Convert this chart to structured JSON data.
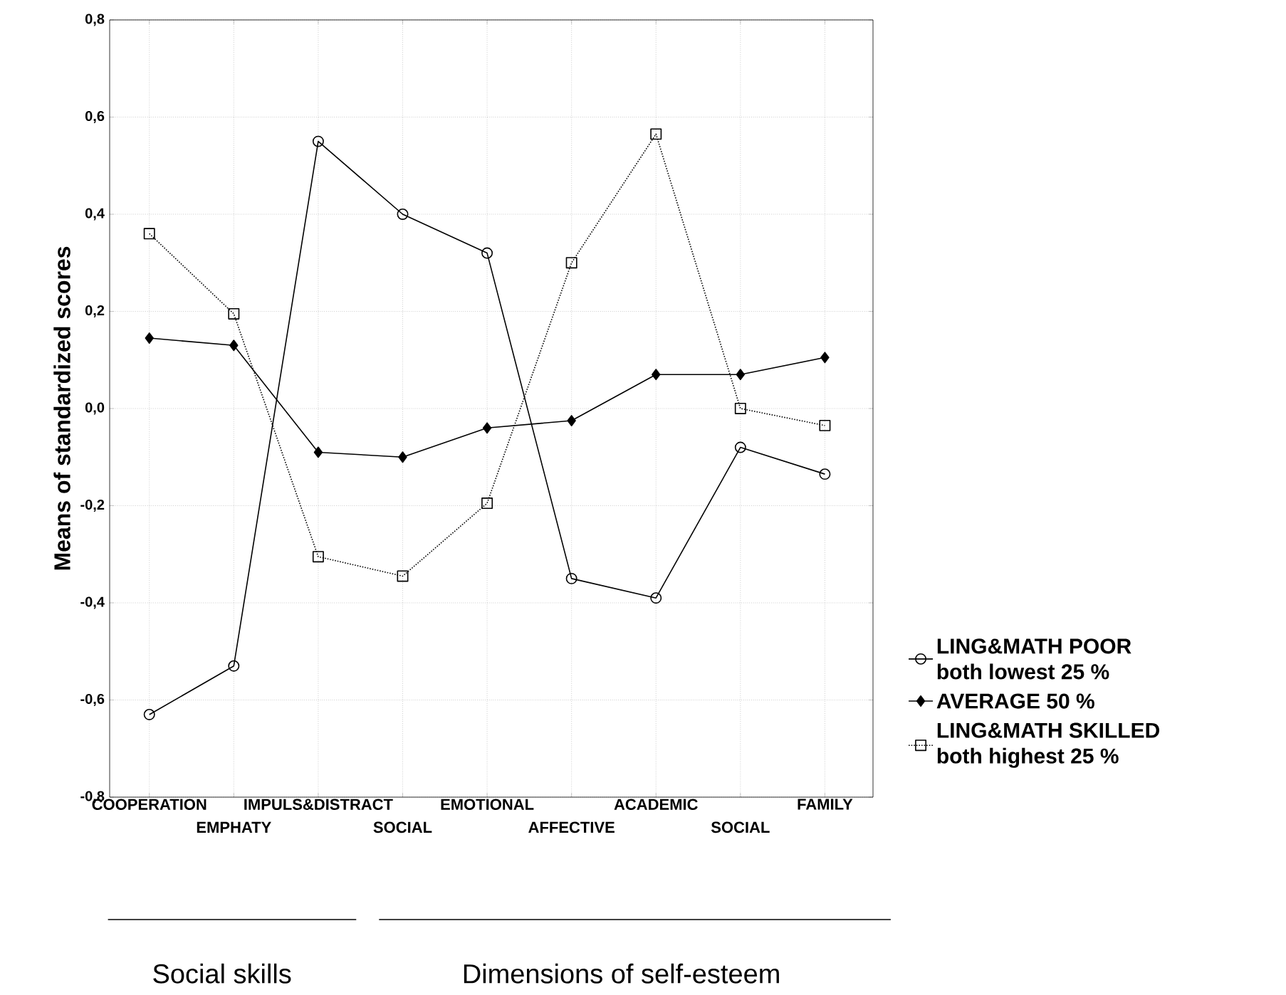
{
  "chart_data": {
    "type": "line",
    "ylabel": "Means of standardized scores",
    "categories": [
      "COOPERATION",
      "EMPHATY",
      "IMPULS&DISTRACT",
      "SOCIAL",
      "EMOTIONAL",
      "AFFECTIVE",
      "ACADEMIC",
      "SOCIAL",
      "FAMILY"
    ],
    "series": [
      {
        "name": "LING&MATH POOR both lowest 25 %",
        "color": "#000000",
        "marker": "circle",
        "line_style": "solid",
        "values": [
          -0.63,
          -0.53,
          0.55,
          0.4,
          0.32,
          -0.35,
          -0.39,
          -0.08,
          -0.135
        ]
      },
      {
        "name": "AVERAGE 50 %",
        "color": "#000000",
        "marker": "diamond",
        "line_style": "solid",
        "values": [
          0.145,
          0.13,
          -0.09,
          -0.1,
          -0.04,
          -0.025,
          0.07,
          0.07,
          0.105
        ]
      },
      {
        "name": "LING&MATH SKILLED both highest 25 %",
        "color": "#000000",
        "marker": "square",
        "line_style": "dotted",
        "values": [
          0.36,
          0.195,
          -0.305,
          -0.345,
          -0.195,
          0.3,
          0.565,
          0.0,
          -0.035
        ]
      }
    ],
    "ylim": [
      -0.8,
      0.8
    ],
    "yticks": [
      {
        "value": -0.8,
        "label": "-0,8"
      },
      {
        "value": -0.6,
        "label": "-0,6"
      },
      {
        "value": -0.4,
        "label": "-0,4"
      },
      {
        "value": -0.2,
        "label": "-0,2"
      },
      {
        "value": 0.0,
        "label": "0,0"
      },
      {
        "value": 0.2,
        "label": "0,2"
      },
      {
        "value": 0.4,
        "label": "0,4"
      },
      {
        "value": 0.6,
        "label": "0,6"
      },
      {
        "value": 0.8,
        "label": "0,8"
      }
    ],
    "grid": true,
    "legend": "right",
    "annotations": [
      "Social skills",
      "Dimensions of self-esteem"
    ]
  }
}
